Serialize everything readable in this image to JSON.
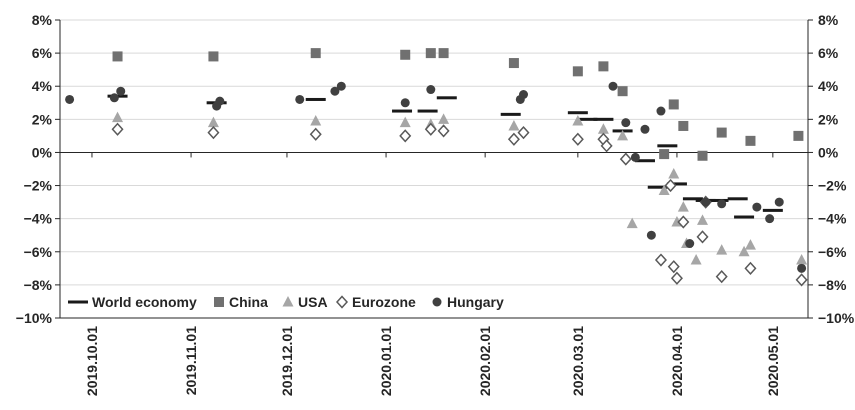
{
  "chart_data": {
    "type": "scatter",
    "title": "",
    "xlabel": "",
    "ylabel": "",
    "ylim": [
      -10,
      8
    ],
    "yticks": [
      "8%",
      "6%",
      "4%",
      "2%",
      "0%",
      "−2%",
      "−4%",
      "−6%",
      "−8%",
      "−10%"
    ],
    "ytick_values": [
      8,
      6,
      4,
      2,
      0,
      -2,
      -4,
      -6,
      -8,
      -10
    ],
    "xlim": [
      "2019-09-21",
      "2020-05-12"
    ],
    "xtick_labels": [
      "2019.10.01",
      "2019.11.01",
      "2019.12.01",
      "2020.01.01",
      "2020.02.01",
      "2020.03.01",
      "2020.04.01",
      "2020.05.01"
    ],
    "xtick_dates": [
      "2019-10-01",
      "2019-11-01",
      "2019-12-01",
      "2020-01-01",
      "2020-02-01",
      "2020-03-01",
      "2020-04-01",
      "2020-05-01"
    ],
    "grid": "horizontal",
    "legend_position": "bottom-left",
    "colors": {
      "world": "#1a1a1a",
      "china": "#707070",
      "usa": "#a6a6a6",
      "eurozone": "#595959",
      "hungary": "#404040",
      "grid": "#d9d9d9",
      "axis": "#262626"
    },
    "series": [
      {
        "name": "World economy",
        "marker": "dash",
        "points": [
          [
            "2019-10-09",
            3.4
          ],
          [
            "2019-11-09",
            3.0
          ],
          [
            "2019-12-10",
            3.2
          ],
          [
            "2020-01-06",
            2.5
          ],
          [
            "2020-01-14",
            2.5
          ],
          [
            "2020-01-20",
            3.3
          ],
          [
            "2020-02-09",
            2.3
          ],
          [
            "2020-03-01",
            2.4
          ],
          [
            "2020-03-04",
            2.0
          ],
          [
            "2020-03-09",
            2.0
          ],
          [
            "2020-03-15",
            1.3
          ],
          [
            "2020-03-22",
            -0.5
          ],
          [
            "2020-03-26",
            -2.1
          ],
          [
            "2020-03-29",
            0.4
          ],
          [
            "2020-04-01",
            -1.9
          ],
          [
            "2020-04-06",
            -2.8
          ],
          [
            "2020-04-10",
            -2.9
          ],
          [
            "2020-04-14",
            -2.9
          ],
          [
            "2020-04-20",
            -2.8
          ],
          [
            "2020-04-22",
            -3.9
          ],
          [
            "2020-05-01",
            -3.5
          ]
        ]
      },
      {
        "name": "China",
        "marker": "square",
        "points": [
          [
            "2019-10-09",
            5.8
          ],
          [
            "2019-11-08",
            5.8
          ],
          [
            "2019-12-10",
            6.0
          ],
          [
            "2020-01-07",
            5.9
          ],
          [
            "2020-01-15",
            6.0
          ],
          [
            "2020-01-19",
            6.0
          ],
          [
            "2020-02-10",
            5.4
          ],
          [
            "2020-03-01",
            4.9
          ],
          [
            "2020-03-09",
            5.2
          ],
          [
            "2020-03-15",
            3.7
          ],
          [
            "2020-03-28",
            -0.1
          ],
          [
            "2020-03-31",
            2.9
          ],
          [
            "2020-04-03",
            1.6
          ],
          [
            "2020-04-09",
            -0.2
          ],
          [
            "2020-04-15",
            1.2
          ],
          [
            "2020-04-24",
            0.7
          ],
          [
            "2020-05-09",
            1.0
          ]
        ]
      },
      {
        "name": "USA",
        "marker": "triangle",
        "points": [
          [
            "2019-10-09",
            2.1
          ],
          [
            "2019-11-08",
            1.8
          ],
          [
            "2019-12-10",
            1.9
          ],
          [
            "2020-01-07",
            1.8
          ],
          [
            "2020-01-15",
            1.7
          ],
          [
            "2020-01-19",
            2.0
          ],
          [
            "2020-02-10",
            1.6
          ],
          [
            "2020-03-01",
            1.9
          ],
          [
            "2020-03-09",
            1.4
          ],
          [
            "2020-03-15",
            1.0
          ],
          [
            "2020-03-18",
            -4.3
          ],
          [
            "2020-03-28",
            -2.3
          ],
          [
            "2020-03-31",
            -1.3
          ],
          [
            "2020-04-01",
            -4.2
          ],
          [
            "2020-04-03",
            -3.3
          ],
          [
            "2020-04-04",
            -5.5
          ],
          [
            "2020-04-07",
            -6.5
          ],
          [
            "2020-04-09",
            -4.1
          ],
          [
            "2020-04-15",
            -5.9
          ],
          [
            "2020-04-22",
            -6.0
          ],
          [
            "2020-04-24",
            -5.6
          ],
          [
            "2020-05-10",
            -6.5
          ]
        ]
      },
      {
        "name": "Eurozone",
        "marker": "diamond",
        "points": [
          [
            "2019-10-09",
            1.4
          ],
          [
            "2019-11-08",
            1.2
          ],
          [
            "2019-12-10",
            1.1
          ],
          [
            "2020-01-07",
            1.0
          ],
          [
            "2020-01-15",
            1.4
          ],
          [
            "2020-01-19",
            1.3
          ],
          [
            "2020-02-10",
            0.8
          ],
          [
            "2020-02-13",
            1.2
          ],
          [
            "2020-03-01",
            0.8
          ],
          [
            "2020-03-09",
            0.8
          ],
          [
            "2020-03-10",
            0.4
          ],
          [
            "2020-03-16",
            -0.4
          ],
          [
            "2020-03-27",
            -6.5
          ],
          [
            "2020-03-30",
            -2.0
          ],
          [
            "2020-03-31",
            -6.9
          ],
          [
            "2020-04-01",
            -7.6
          ],
          [
            "2020-04-03",
            -4.2
          ],
          [
            "2020-04-09",
            -5.1
          ],
          [
            "2020-04-10",
            -3.0
          ],
          [
            "2020-04-15",
            -7.5
          ],
          [
            "2020-04-24",
            -7.0
          ],
          [
            "2020-05-10",
            -7.7
          ]
        ]
      },
      {
        "name": "Hungary",
        "marker": "circle",
        "points": [
          [
            "2019-09-24",
            3.2
          ],
          [
            "2019-10-08",
            3.3
          ],
          [
            "2019-10-10",
            3.7
          ],
          [
            "2019-11-09",
            2.8
          ],
          [
            "2019-11-10",
            3.1
          ],
          [
            "2019-12-05",
            3.2
          ],
          [
            "2019-12-16",
            3.7
          ],
          [
            "2019-12-18",
            4.0
          ],
          [
            "2020-01-07",
            3.0
          ],
          [
            "2020-01-15",
            3.8
          ],
          [
            "2020-02-12",
            3.2
          ],
          [
            "2020-02-13",
            3.5
          ],
          [
            "2020-03-12",
            4.0
          ],
          [
            "2020-03-16",
            1.8
          ],
          [
            "2020-03-19",
            -0.3
          ],
          [
            "2020-03-22",
            1.4
          ],
          [
            "2020-03-24",
            -5.0
          ],
          [
            "2020-03-27",
            2.5
          ],
          [
            "2020-04-05",
            -5.5
          ],
          [
            "2020-04-10",
            -3.0
          ],
          [
            "2020-04-15",
            -3.1
          ],
          [
            "2020-04-26",
            -3.3
          ],
          [
            "2020-04-30",
            -4.0
          ],
          [
            "2020-05-03",
            -3.0
          ],
          [
            "2020-05-10",
            -7.0
          ]
        ]
      }
    ]
  }
}
